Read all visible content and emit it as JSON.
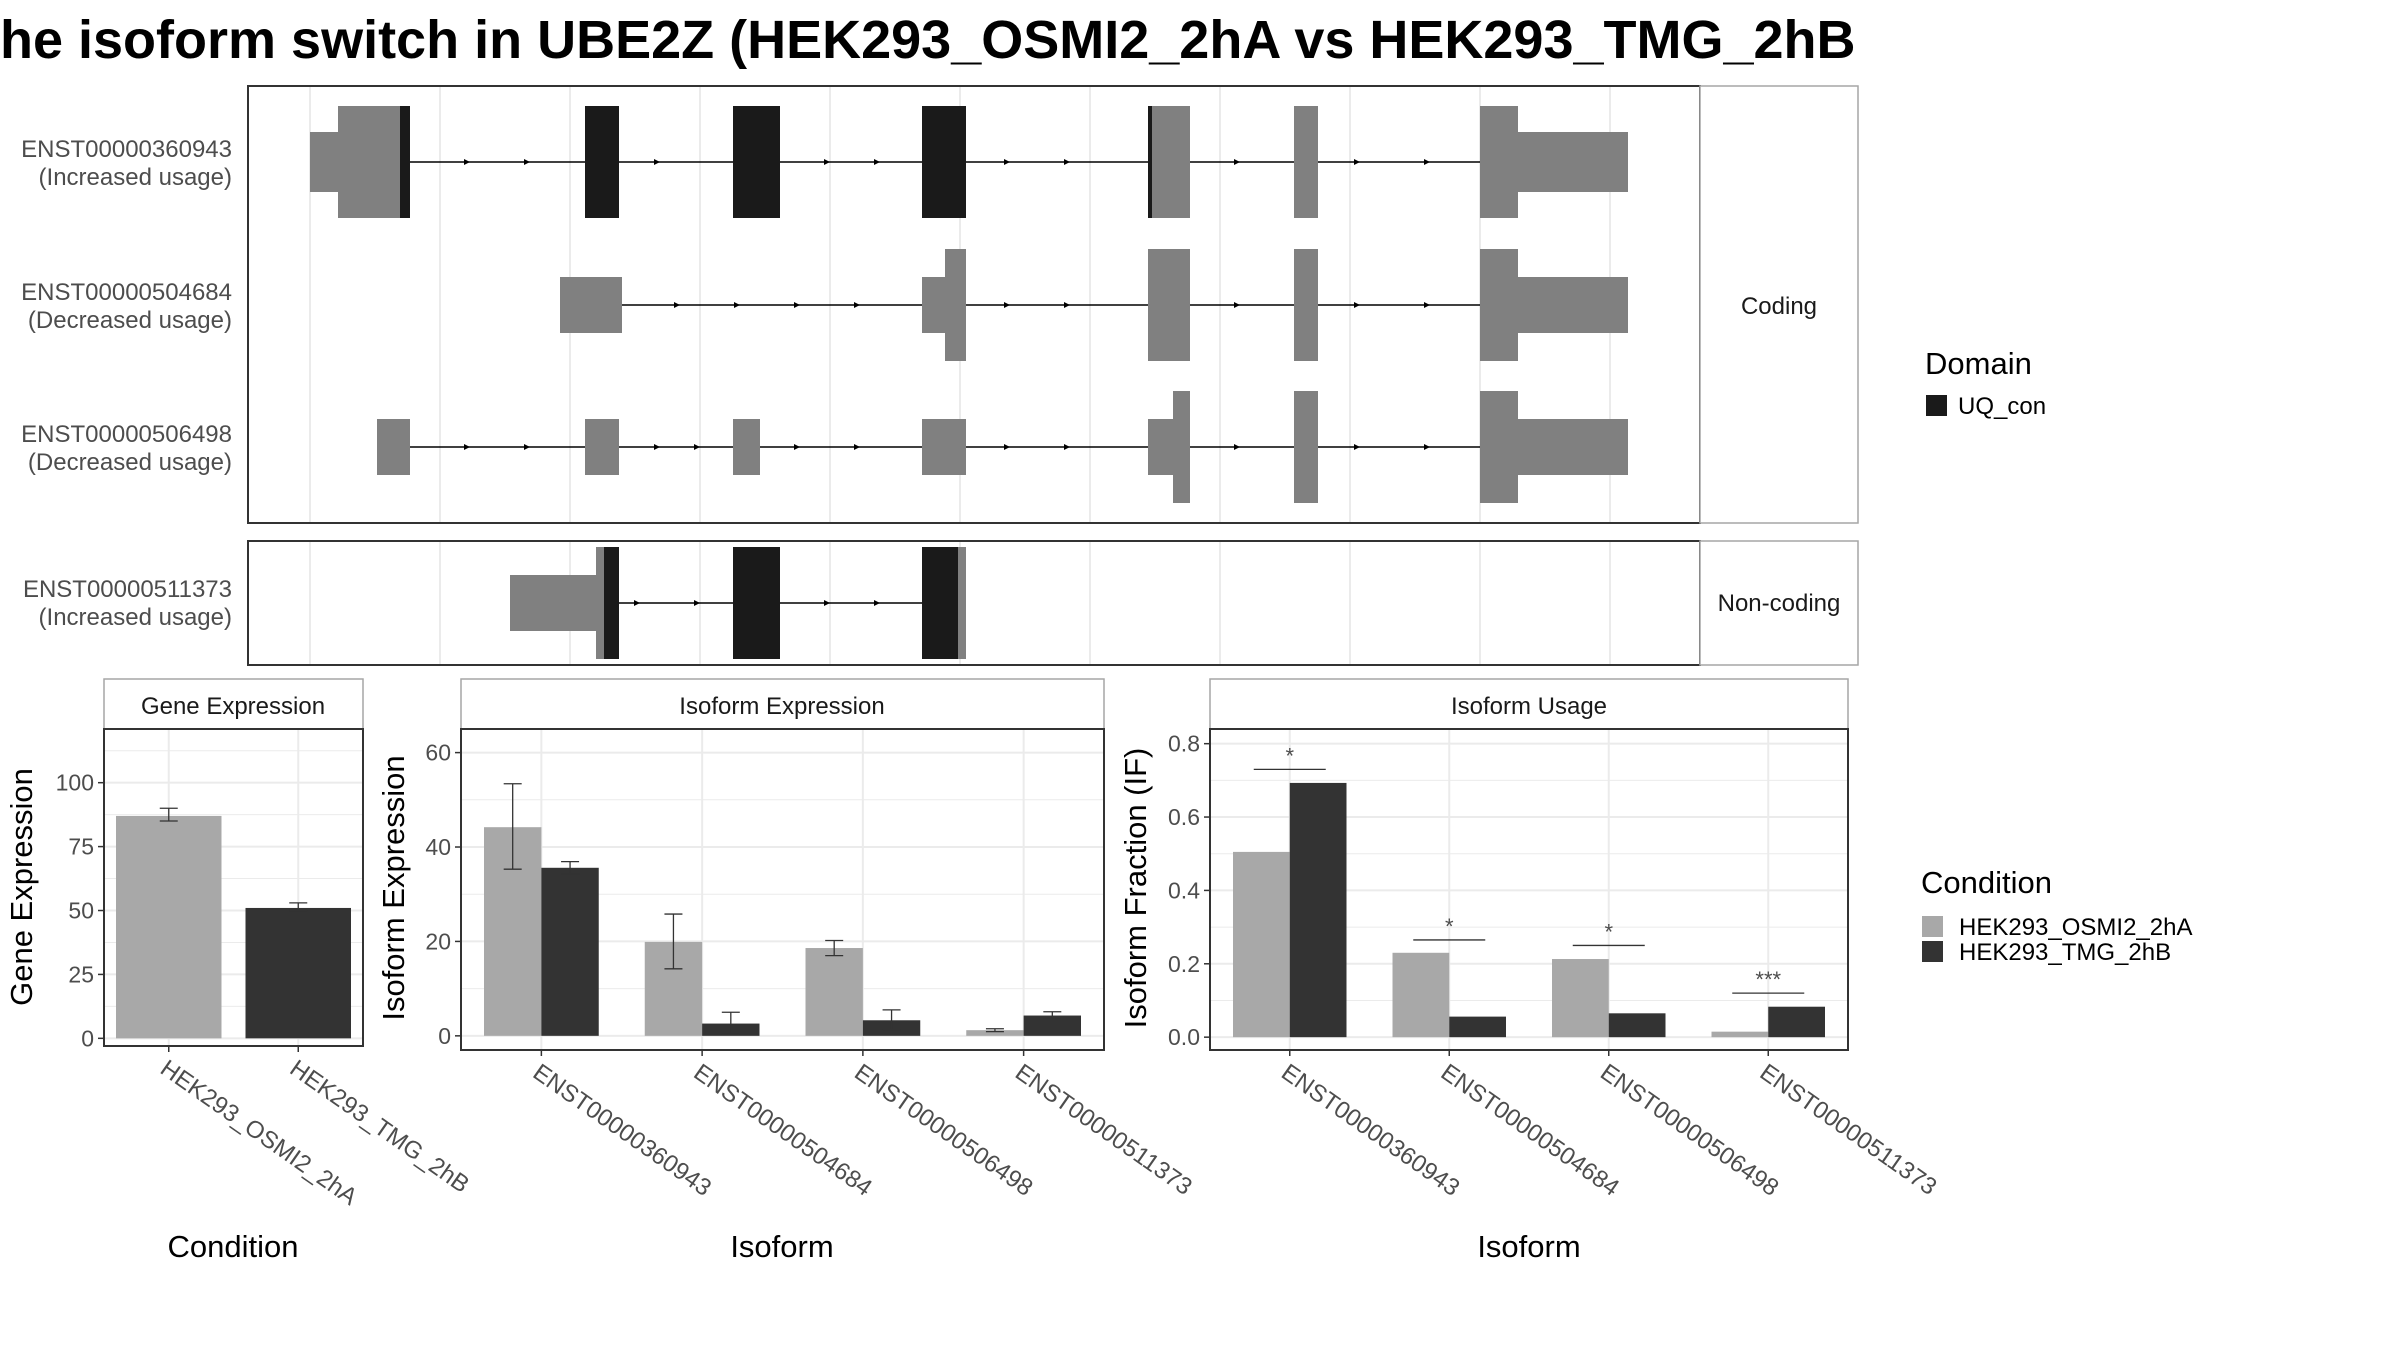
{
  "title": "he isoform switch in UBE2Z (HEK293_OSMI2_2hA vs HEK293_TMG_2hB",
  "colors": {
    "utr": "#808080",
    "domain": "#1a1a1a",
    "cond_a": "#a8a8a8",
    "cond_b": "#333333",
    "grid": "#ebebeb",
    "panel_border": "#333333",
    "strip_fill": "#ffffff",
    "strip_border": "#a6a6a6"
  },
  "transcripts": {
    "groups": [
      {
        "label": "Coding"
      },
      {
        "label": "Non-coding"
      }
    ],
    "rows": [
      {
        "id": "ENST00000360943",
        "usage": "(Increased usage)"
      },
      {
        "id": "ENST00000504684",
        "usage": "(Decreased usage)"
      },
      {
        "id": "ENST00000506498",
        "usage": "(Decreased usage)"
      },
      {
        "id": "ENST00000511373",
        "usage": "(Increased usage)"
      }
    ]
  },
  "legends": {
    "domain": {
      "title": "Domain",
      "items": [
        {
          "label": "UQ_con",
          "color": "#1a1a1a"
        }
      ]
    },
    "condition": {
      "title": "Condition",
      "items": [
        {
          "label": "HEK293_OSMI2_2hA",
          "color": "#a8a8a8"
        },
        {
          "label": "HEK293_TMG_2hB",
          "color": "#333333"
        }
      ]
    }
  },
  "chart_data": [
    {
      "type": "bar",
      "title": "Gene Expression",
      "xlabel": "Condition",
      "ylabel": "Gene Expression",
      "categories": [
        "HEK293_OSMI2_2hA",
        "HEK293_TMG_2hB"
      ],
      "values": [
        87,
        51
      ],
      "errors": [
        [
          85,
          90
        ],
        [
          50,
          53
        ]
      ],
      "ylim": [
        -3,
        121
      ],
      "yticks": [
        0,
        25,
        50,
        75,
        100
      ]
    },
    {
      "type": "bar",
      "title": "Isoform Expression",
      "xlabel": "Isoform",
      "ylabel": "Isoform Expression",
      "categories": [
        "ENST00000360943",
        "ENST00000504684",
        "ENST00000506498",
        "ENST00000511373"
      ],
      "series": [
        {
          "name": "HEK293_OSMI2_2hA",
          "values": [
            44.2,
            19.9,
            18.6,
            1.2
          ],
          "errors": [
            [
              35.3,
              53.4
            ],
            [
              14.2,
              25.8
            ],
            [
              17.0,
              20.2
            ],
            [
              0.9,
              1.5
            ]
          ]
        },
        {
          "name": "HEK293_TMG_2hB",
          "values": [
            35.6,
            2.6,
            3.3,
            4.3
          ],
          "errors": [
            [
              34.3,
              36.9
            ],
            [
              0.3,
              5.0
            ],
            [
              1.3,
              5.5
            ],
            [
              3.6,
              5.1
            ]
          ]
        }
      ],
      "ylim": [
        -3,
        65
      ],
      "yticks": [
        0,
        20,
        40,
        60
      ]
    },
    {
      "type": "bar",
      "title": "Isoform Usage",
      "xlabel": "Isoform",
      "ylabel": "Isoform Fraction (IF)",
      "categories": [
        "ENST00000360943",
        "ENST00000504684",
        "ENST00000506498",
        "ENST00000511373"
      ],
      "series": [
        {
          "name": "HEK293_OSMI2_2hA",
          "values": [
            0.505,
            0.23,
            0.213,
            0.015
          ]
        },
        {
          "name": "HEK293_TMG_2hB",
          "values": [
            0.693,
            0.056,
            0.065,
            0.083
          ]
        }
      ],
      "significance": [
        {
          "label": "*",
          "y": 0.73
        },
        {
          "label": "*",
          "y": 0.265
        },
        {
          "label": "*",
          "y": 0.25
        },
        {
          "label": "***",
          "y": 0.12
        }
      ],
      "ylim": [
        -0.035,
        0.84
      ],
      "yticks": [
        0.0,
        0.2,
        0.4,
        0.6,
        0.8
      ]
    }
  ]
}
